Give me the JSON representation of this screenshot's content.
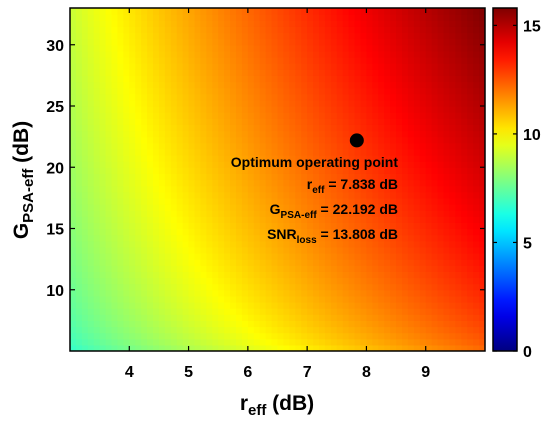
{
  "chart_data": {
    "type": "heatmap",
    "title": "",
    "x_label": {
      "main": "r",
      "sub": "eff",
      "tail": " (dB)"
    },
    "y_label": {
      "main": "G",
      "sub": "PSA-eff",
      "tail": " (dB)"
    },
    "xlim": [
      3.0,
      10.0
    ],
    "ylim": [
      5.0,
      33.0
    ],
    "x_ticks": [
      4,
      5,
      6,
      7,
      8,
      9
    ],
    "y_ticks": [
      10,
      15,
      20,
      25,
      30
    ],
    "colorbar": {
      "colormap": "jet",
      "lim": [
        0,
        15.8
      ],
      "ticks": [
        0,
        5,
        10,
        15
      ]
    },
    "optimum_point": {
      "x": 7.838,
      "y": 22.192
    },
    "annotation": {
      "heading": "Optimum operating point",
      "lines": [
        {
          "main": "r",
          "sub": "eff",
          "value": " = 7.838 dB"
        },
        {
          "main": "G",
          "sub": "PSA-eff",
          "value": " = 22.192 dB"
        },
        {
          "main": "SNR",
          "sub": "loss",
          "value": " = 13.808 dB"
        }
      ]
    },
    "surface_samples": [
      {
        "x": 3.0,
        "y": 5.0,
        "value": 6.5
      },
      {
        "x": 3.0,
        "y": 15.0,
        "value": 8.5
      },
      {
        "x": 3.0,
        "y": 33.0,
        "value": 9.0
      },
      {
        "x": 5.0,
        "y": 10.0,
        "value": 10.5
      },
      {
        "x": 7.0,
        "y": 5.0,
        "value": 11.5
      },
      {
        "x": 7.84,
        "y": 22.19,
        "value": 13.8
      },
      {
        "x": 10.0,
        "y": 5.0,
        "value": 13.0
      },
      {
        "x": 10.0,
        "y": 33.0,
        "value": 15.8
      }
    ]
  }
}
